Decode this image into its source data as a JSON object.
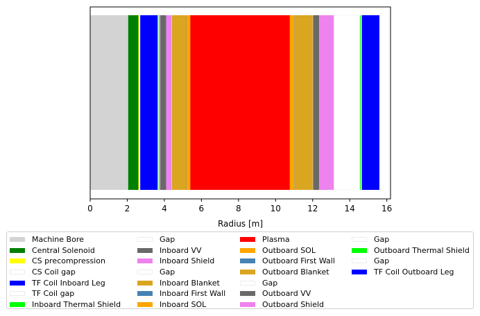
{
  "chart_data": {
    "type": "bar",
    "orientation": "horizontal-stacked",
    "xlabel": "Radius [m]",
    "ylabel": "",
    "xlim": [
      0,
      16.2
    ],
    "xticks": [
      0,
      2,
      4,
      6,
      8,
      10,
      12,
      14,
      16
    ],
    "xtick_labels": [
      "0",
      "2",
      "4",
      "6",
      "8",
      "10",
      "12",
      "14",
      "16"
    ],
    "legend_position": "below",
    "legend_columns": 4,
    "series": [
      {
        "name": "Machine Bore",
        "value": 2.05,
        "color": "#d3d3d3"
      },
      {
        "name": "Central Solenoid",
        "value": 0.55,
        "color": "#008000"
      },
      {
        "name": "CS precompression",
        "value": 0.05,
        "color": "#ffff00"
      },
      {
        "name": "CS Coil gap",
        "value": 0.05,
        "color": "#ffffff"
      },
      {
        "name": "TF Coil Inboard Leg",
        "value": 0.95,
        "color": "#0000ff"
      },
      {
        "name": "TF Coil gap",
        "value": 0.05,
        "color": "#ffffff"
      },
      {
        "name": "Inboard Thermal Shield",
        "value": 0.05,
        "color": "#00ff00"
      },
      {
        "name": "Gap",
        "value": 0.02,
        "color": "#ffffff"
      },
      {
        "name": "Inboard VV",
        "value": 0.33,
        "color": "#696969"
      },
      {
        "name": "Inboard Shield",
        "value": 0.3,
        "color": "#ee82ee"
      },
      {
        "name": "Gap",
        "value": 0.01,
        "color": "#ffffff"
      },
      {
        "name": "Inboard Blanket",
        "value": 0.75,
        "color": "#daa520"
      },
      {
        "name": "Inboard First Wall",
        "value": 0.02,
        "color": "#4682b4"
      },
      {
        "name": "Inboard SOL",
        "value": 0.22,
        "color": "#ffa500"
      },
      {
        "name": "Plasma",
        "value": 5.37,
        "color": "#ff0000"
      },
      {
        "name": "Outboard SOL",
        "value": 0.22,
        "color": "#ffa500"
      },
      {
        "name": "Outboard First Wall",
        "value": 0.02,
        "color": "#4682b4"
      },
      {
        "name": "Outboard Blanket",
        "value": 1.0,
        "color": "#daa520"
      },
      {
        "name": "Gap",
        "value": 0.01,
        "color": "#ffffff"
      },
      {
        "name": "Outboard VV",
        "value": 0.33,
        "color": "#696969"
      },
      {
        "name": "Outboard Shield",
        "value": 0.8,
        "color": "#ee82ee"
      },
      {
        "name": "Gap",
        "value": 1.4,
        "color": "#ffffff"
      },
      {
        "name": "Outboard Thermal Shield",
        "value": 0.05,
        "color": "#00ff00"
      },
      {
        "name": "Gap",
        "value": 0.05,
        "color": "#ffffff"
      },
      {
        "name": "TF Coil Outboard Leg",
        "value": 0.95,
        "color": "#0000ff"
      }
    ]
  }
}
